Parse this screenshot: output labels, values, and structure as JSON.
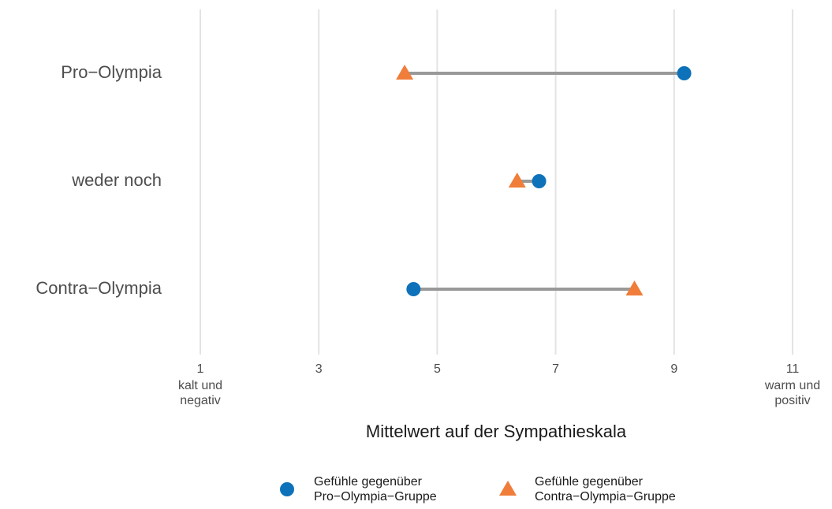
{
  "chart_data": {
    "type": "dumbbell",
    "x_label": "Mittelwert auf der Sympathieskala",
    "categories": [
      "Pro−Olympia",
      "weder noch",
      "Contra−Olympia"
    ],
    "series": [
      {
        "name": "Gefühle gegenüber Pro−Olympia−Gruppe",
        "color": "#0d72b9",
        "marker": "circle",
        "values": [
          9.17,
          6.72,
          4.6
        ]
      },
      {
        "name": "Gefühle gegenüber Contra−Olympia−Gruppe",
        "color": "#f07d3a",
        "marker": "triangle",
        "values": [
          4.45,
          6.35,
          8.33
        ]
      }
    ],
    "segment_color": "#999999",
    "xlim": [
      1,
      11
    ],
    "xticks": [
      1,
      3,
      5,
      7,
      9,
      11
    ],
    "annotations": [
      {
        "x": 1,
        "text": "kalt und negativ"
      },
      {
        "x": 11,
        "text": "warm und positiv"
      }
    ],
    "grid": true,
    "legend": "bottom"
  }
}
